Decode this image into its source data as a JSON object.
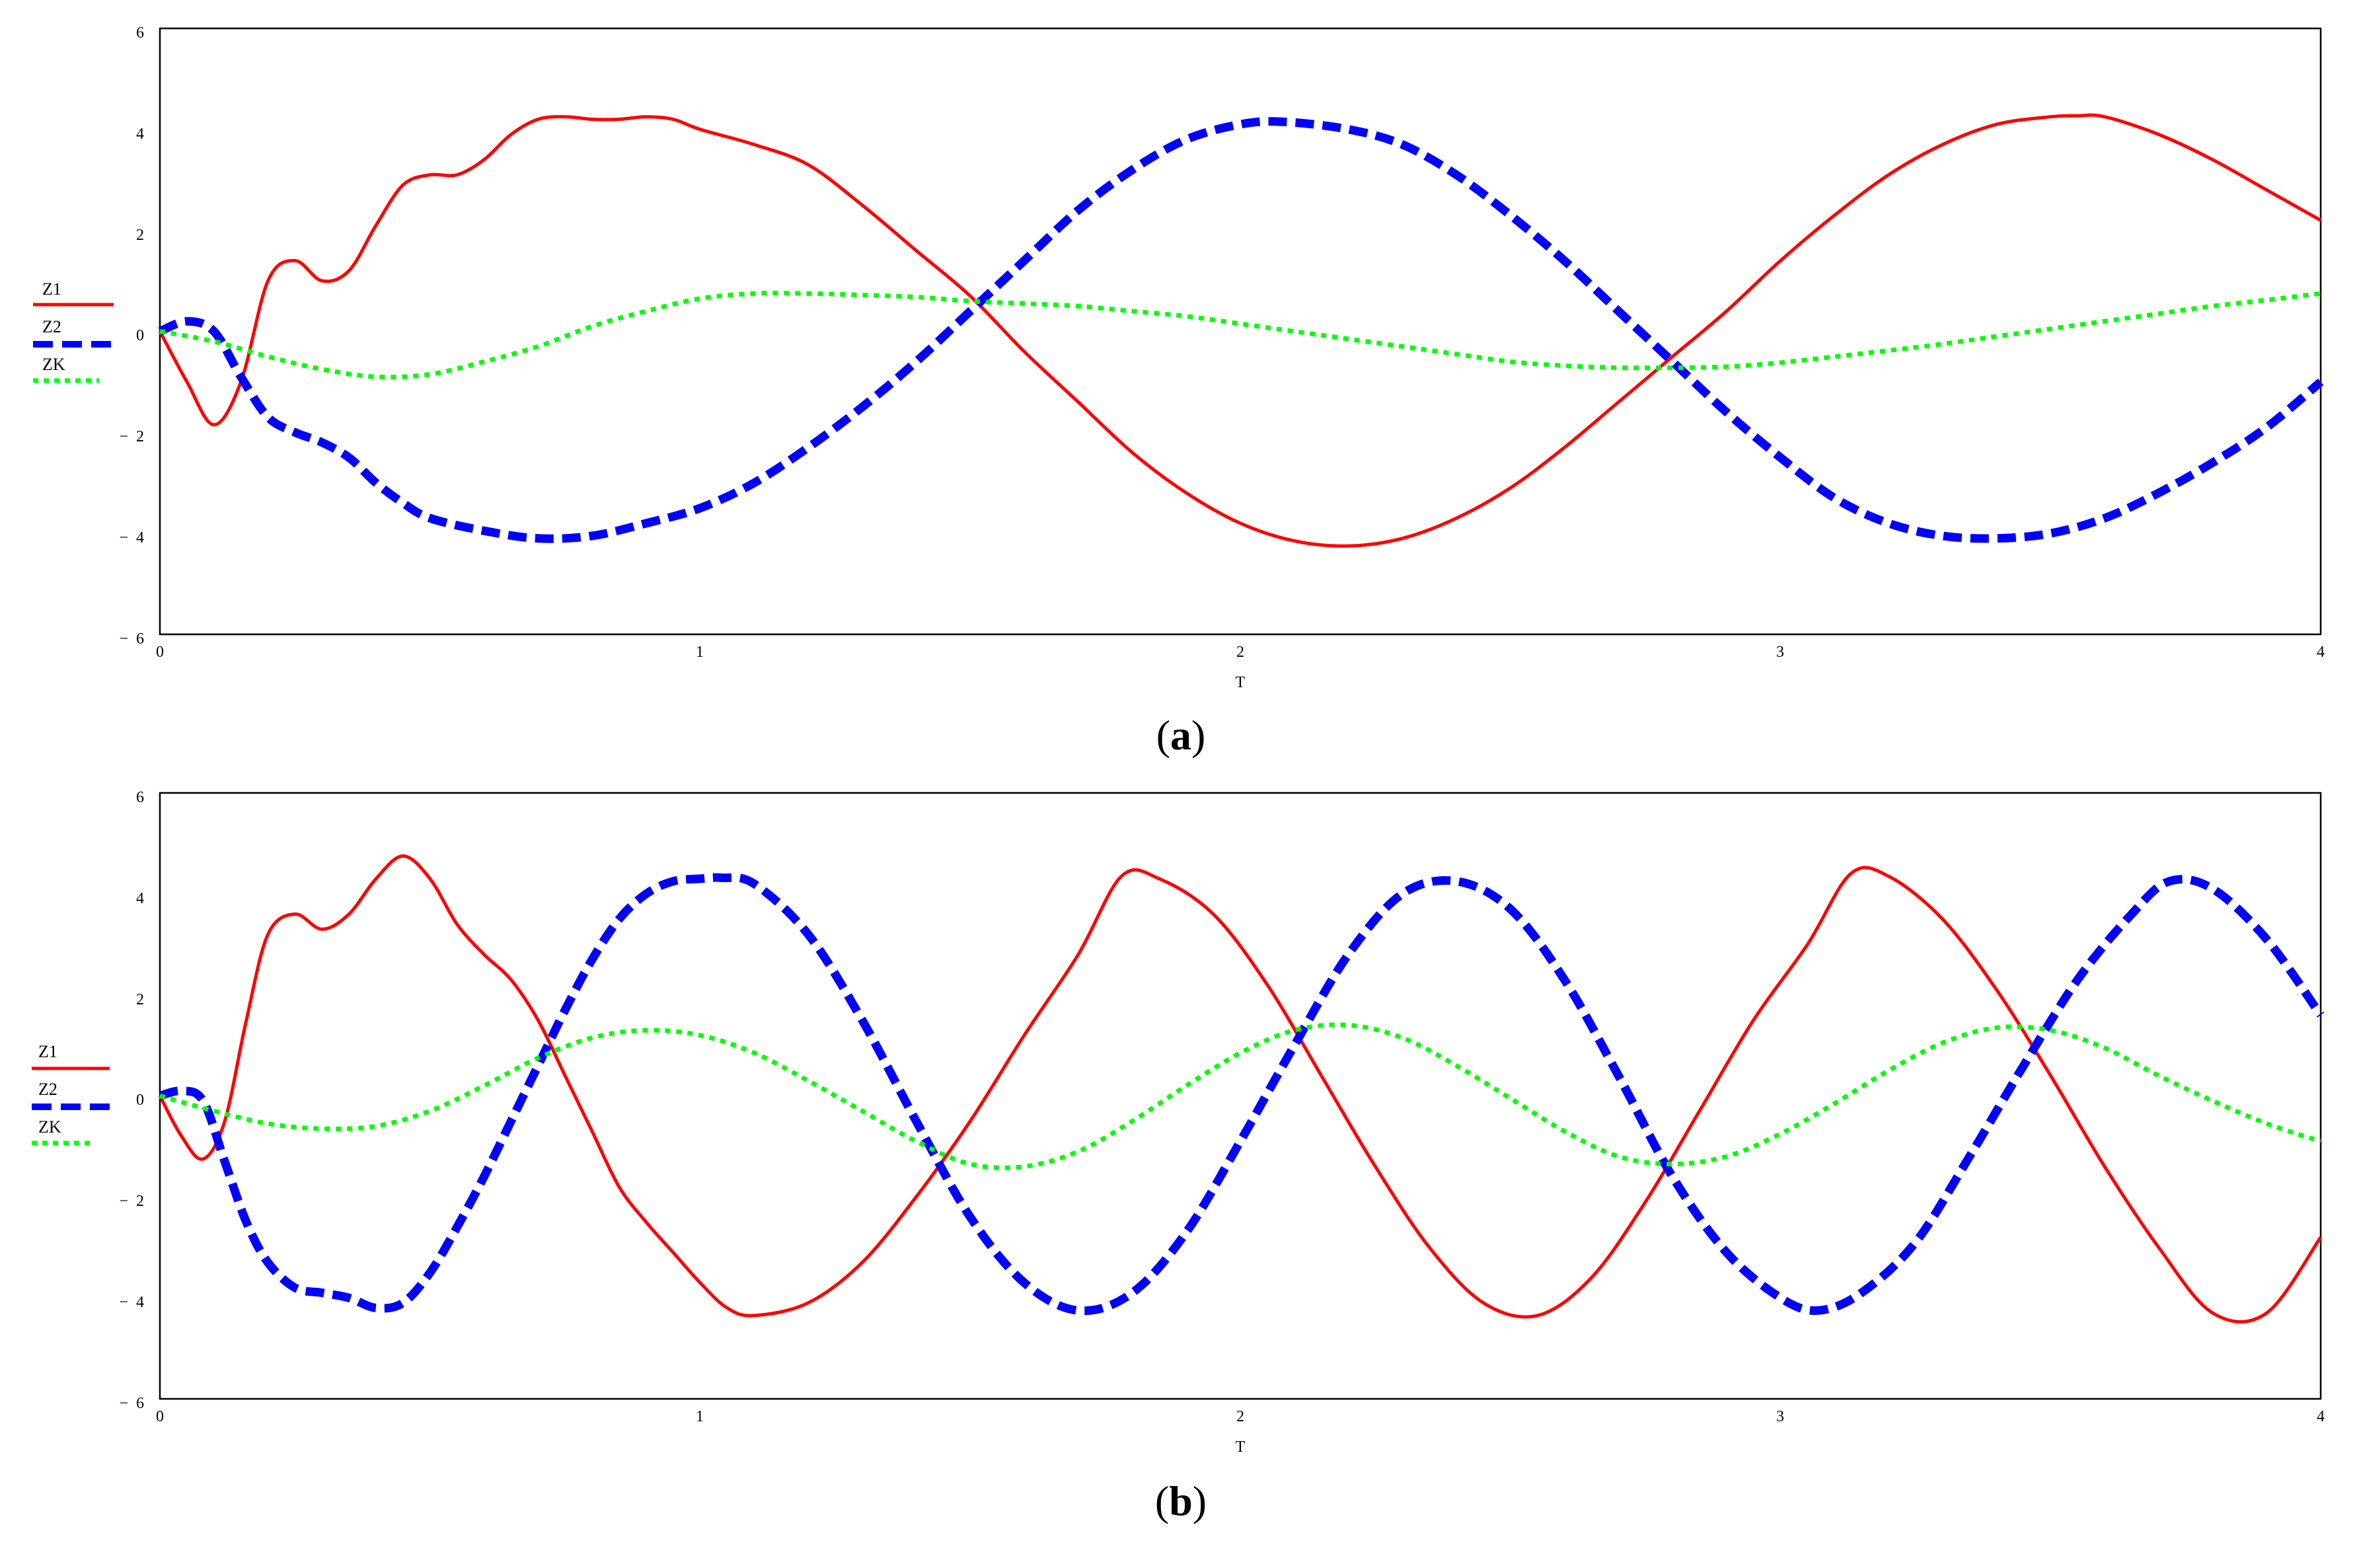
{
  "colors": {
    "Z1": "#ff0000",
    "Z2": "#0000ff",
    "ZK": "#00ff00",
    "axis": "#000000",
    "background": "#ffffff"
  },
  "chart_data": [
    {
      "type": "line",
      "panel_label": "a",
      "xlabel": "T",
      "ylabel": "",
      "xlim": [
        0,
        4
      ],
      "ylim": [
        -6,
        6
      ],
      "xticks": [
        0,
        1,
        2,
        3,
        4
      ],
      "yticks": [
        6,
        4,
        2,
        0,
        -2,
        -4,
        -6
      ],
      "ytick_labels": [
        "6",
        "4",
        "2",
        "0",
        "−  2",
        "−  4",
        "−  6"
      ],
      "grid": false,
      "legend_position": "left",
      "series": [
        {
          "name": "Z1",
          "style": "solid",
          "color": "#ff0000",
          "x": [
            0,
            0.05,
            0.1,
            0.15,
            0.2,
            0.25,
            0.3,
            0.35,
            0.4,
            0.45,
            0.5,
            0.55,
            0.6,
            0.65,
            0.7,
            0.75,
            0.8,
            0.85,
            0.9,
            0.95,
            1.0,
            1.1,
            1.2,
            1.3,
            1.4,
            1.5,
            1.6,
            1.7,
            1.8,
            1.9,
            2.0,
            2.1,
            2.2,
            2.3,
            2.4,
            2.5,
            2.6,
            2.7,
            2.8,
            2.9,
            3.0,
            3.1,
            3.2,
            3.3,
            3.4,
            3.5,
            3.55,
            3.6,
            3.7,
            3.8,
            3.9,
            4.0
          ],
          "y": [
            0,
            -1.0,
            -1.85,
            -1.0,
            1.0,
            1.4,
            1.0,
            1.2,
            2.1,
            2.9,
            3.1,
            3.1,
            3.4,
            3.9,
            4.2,
            4.25,
            4.2,
            4.2,
            4.25,
            4.2,
            4.0,
            3.7,
            3.3,
            2.5,
            1.6,
            0.7,
            -0.4,
            -1.4,
            -2.4,
            -3.2,
            -3.8,
            -4.15,
            -4.25,
            -4.1,
            -3.7,
            -3.1,
            -2.3,
            -1.4,
            -0.5,
            0.4,
            1.4,
            2.3,
            3.1,
            3.7,
            4.1,
            4.25,
            4.27,
            4.25,
            3.9,
            3.4,
            2.8,
            2.2
          ]
        },
        {
          "name": "Z2",
          "style": "dashed",
          "color": "#0000ff",
          "x": [
            0,
            0.05,
            0.1,
            0.15,
            0.2,
            0.25,
            0.3,
            0.35,
            0.4,
            0.45,
            0.5,
            0.6,
            0.7,
            0.8,
            0.9,
            1.0,
            1.1,
            1.2,
            1.3,
            1.4,
            1.5,
            1.6,
            1.7,
            1.8,
            1.9,
            2.0,
            2.08,
            2.2,
            2.3,
            2.4,
            2.5,
            2.6,
            2.7,
            2.8,
            2.9,
            3.0,
            3.1,
            3.2,
            3.3,
            3.4,
            3.5,
            3.6,
            3.7,
            3.8,
            3.9,
            4.0
          ],
          "y": [
            0,
            0.2,
            0.0,
            -0.9,
            -1.7,
            -2.0,
            -2.2,
            -2.5,
            -3.0,
            -3.4,
            -3.7,
            -3.95,
            -4.1,
            -4.05,
            -3.8,
            -3.5,
            -3.0,
            -2.3,
            -1.5,
            -0.6,
            0.4,
            1.4,
            2.4,
            3.2,
            3.8,
            4.1,
            4.15,
            4.0,
            3.7,
            3.1,
            2.3,
            1.4,
            0.4,
            -0.6,
            -1.6,
            -2.5,
            -3.3,
            -3.8,
            -4.05,
            -4.1,
            -4.0,
            -3.7,
            -3.2,
            -2.6,
            -1.9,
            -1.0
          ]
        },
        {
          "name": "ZK",
          "style": "dotted",
          "color": "#00ff00",
          "x": [
            0,
            0.1,
            0.2,
            0.3,
            0.4,
            0.5,
            0.6,
            0.7,
            0.8,
            0.9,
            1.0,
            1.1,
            1.2,
            1.3,
            1.4,
            1.5,
            1.6,
            1.7,
            1.8,
            1.9,
            2.0,
            2.1,
            2.2,
            2.3,
            2.4,
            2.5,
            2.6,
            2.7,
            2.8,
            2.9,
            3.0,
            3.1,
            3.2,
            3.3,
            3.4,
            3.5,
            3.6,
            3.7,
            3.8,
            3.9,
            4.0
          ],
          "y": [
            0,
            -0.2,
            -0.5,
            -0.75,
            -0.9,
            -0.85,
            -0.6,
            -0.3,
            0.1,
            0.4,
            0.65,
            0.75,
            0.75,
            0.72,
            0.68,
            0.6,
            0.55,
            0.5,
            0.4,
            0.3,
            0.15,
            0.0,
            -0.15,
            -0.3,
            -0.45,
            -0.6,
            -0.68,
            -0.72,
            -0.72,
            -0.7,
            -0.62,
            -0.5,
            -0.38,
            -0.25,
            -0.1,
            0.05,
            0.2,
            0.35,
            0.5,
            0.62,
            0.75
          ]
        }
      ]
    },
    {
      "type": "line",
      "panel_label": "b",
      "xlabel": "T",
      "ylabel": "",
      "xlim": [
        0,
        4
      ],
      "ylim": [
        -6,
        6
      ],
      "xticks": [
        0,
        1,
        2,
        3,
        4
      ],
      "yticks": [
        6,
        4,
        2,
        0,
        -2,
        -4,
        -6
      ],
      "ytick_labels": [
        "6",
        "4",
        "2",
        "0",
        "−  2",
        "−  4",
        "−  6"
      ],
      "grid": false,
      "legend_position": "left",
      "series": [
        {
          "name": "Z1",
          "style": "solid",
          "color": "#ff0000",
          "x": [
            0,
            0.04,
            0.08,
            0.12,
            0.16,
            0.2,
            0.25,
            0.3,
            0.35,
            0.4,
            0.45,
            0.5,
            0.55,
            0.6,
            0.65,
            0.7,
            0.75,
            0.8,
            0.85,
            0.9,
            0.95,
            1.0,
            1.05,
            1.1,
            1.2,
            1.3,
            1.4,
            1.5,
            1.6,
            1.7,
            1.78,
            1.85,
            1.95,
            2.05,
            2.15,
            2.25,
            2.35,
            2.45,
            2.55,
            2.65,
            2.75,
            2.85,
            2.95,
            3.05,
            3.13,
            3.2,
            3.3,
            3.4,
            3.5,
            3.6,
            3.7,
            3.8,
            3.9,
            4.0
          ],
          "y": [
            0,
            -0.8,
            -1.25,
            -0.5,
            1.5,
            3.2,
            3.6,
            3.3,
            3.6,
            4.3,
            4.75,
            4.3,
            3.4,
            2.8,
            2.3,
            1.5,
            0.4,
            -0.7,
            -1.8,
            -2.5,
            -3.1,
            -3.7,
            -4.2,
            -4.35,
            -4.1,
            -3.3,
            -2.0,
            -0.5,
            1.2,
            2.8,
            4.35,
            4.3,
            3.6,
            2.2,
            0.4,
            -1.4,
            -3.0,
            -4.1,
            -4.35,
            -3.6,
            -2.1,
            -0.3,
            1.5,
            3.0,
            4.4,
            4.35,
            3.5,
            2.1,
            0.4,
            -1.4,
            -3.0,
            -4.3,
            -4.3,
            -2.8
          ]
        },
        {
          "name": "Z2",
          "style": "dashed",
          "color": "#0000ff",
          "x": [
            0,
            0.04,
            0.08,
            0.12,
            0.16,
            0.2,
            0.25,
            0.3,
            0.35,
            0.4,
            0.45,
            0.5,
            0.55,
            0.6,
            0.65,
            0.7,
            0.75,
            0.8,
            0.85,
            0.9,
            0.95,
            1.0,
            1.04,
            1.1,
            1.2,
            1.3,
            1.4,
            1.5,
            1.6,
            1.7,
            1.8,
            1.9,
            2.0,
            2.1,
            2.2,
            2.3,
            2.4,
            2.5,
            2.6,
            2.7,
            2.8,
            2.9,
            3.0,
            3.07,
            3.15,
            3.25,
            3.35,
            3.45,
            3.55,
            3.65,
            3.72,
            3.8,
            3.9,
            4.0
          ],
          "y": [
            0,
            0.1,
            -0.1,
            -1.3,
            -2.5,
            -3.3,
            -3.8,
            -3.9,
            -4.0,
            -4.2,
            -4.1,
            -3.5,
            -2.6,
            -1.6,
            -0.5,
            0.6,
            1.7,
            2.7,
            3.5,
            4.0,
            4.25,
            4.3,
            4.32,
            4.2,
            3.2,
            1.5,
            -0.5,
            -2.4,
            -3.7,
            -4.25,
            -3.9,
            -2.7,
            -0.9,
            1.0,
            2.8,
            4.0,
            4.25,
            3.7,
            2.3,
            0.4,
            -1.6,
            -3.1,
            -4.0,
            -4.25,
            -3.9,
            -2.9,
            -1.2,
            0.6,
            2.3,
            3.6,
            4.25,
            4.1,
            3.1,
            1.6
          ]
        },
        {
          "name": "ZK",
          "style": "dotted",
          "color": "#00ff00",
          "x": [
            0,
            0.1,
            0.2,
            0.3,
            0.4,
            0.5,
            0.6,
            0.7,
            0.8,
            0.9,
            1.0,
            1.1,
            1.2,
            1.3,
            1.4,
            1.5,
            1.6,
            1.7,
            1.8,
            1.9,
            2.0,
            2.1,
            2.2,
            2.3,
            2.4,
            2.5,
            2.6,
            2.7,
            2.8,
            2.9,
            3.0,
            3.1,
            3.2,
            3.3,
            3.4,
            3.5,
            3.6,
            3.7,
            3.8,
            3.9,
            4.0
          ],
          "y": [
            0,
            -0.3,
            -0.55,
            -0.65,
            -0.6,
            -0.3,
            0.2,
            0.75,
            1.15,
            1.3,
            1.2,
            0.85,
            0.3,
            -0.3,
            -0.9,
            -1.35,
            -1.4,
            -1.1,
            -0.5,
            0.2,
            0.85,
            1.3,
            1.4,
            1.15,
            0.6,
            -0.05,
            -0.7,
            -1.2,
            -1.35,
            -1.2,
            -0.75,
            -0.15,
            0.5,
            1.05,
            1.35,
            1.3,
            0.95,
            0.4,
            -0.1,
            -0.55,
            -0.9
          ]
        }
      ]
    }
  ]
}
